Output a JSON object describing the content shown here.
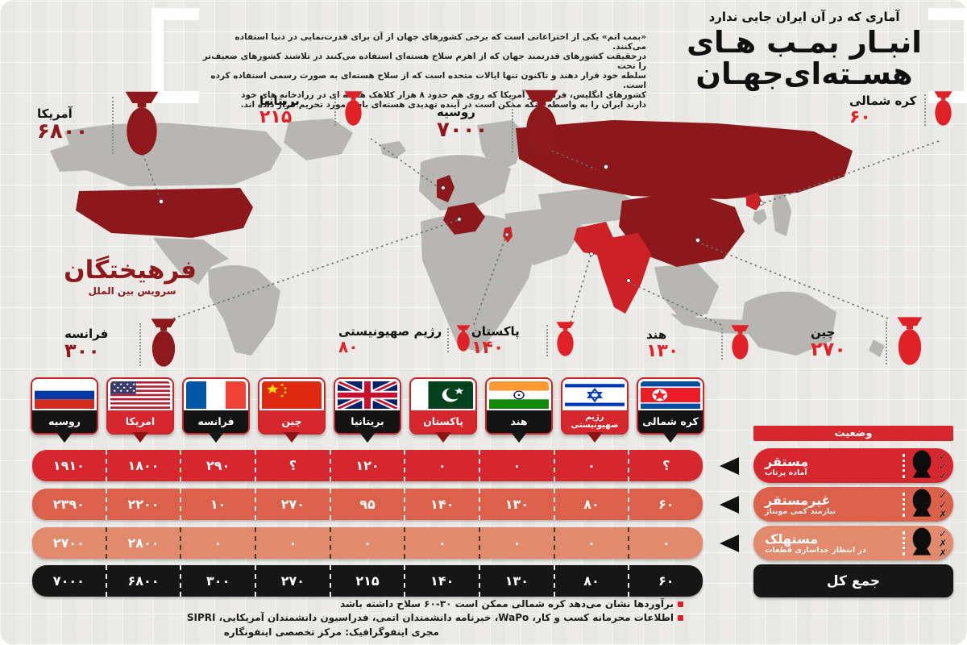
{
  "colors": {
    "bg": "#ecebe8",
    "ink": "#141414",
    "dark_red": "#8e181b",
    "bright_red": "#e02127",
    "map_gray": "#b8b6b3",
    "map_dark_red": "#8c181b",
    "map_bright_red": "#cc2127",
    "row_deployed": "#d7272e",
    "row_nondeployed": "#db614b",
    "row_retired": "#e28a6d",
    "row_total": "#161616",
    "status_header": "#d7272e",
    "flag_label_black": "#141414",
    "flag_label_red": "#d7272e"
  },
  "header": {
    "kicker": "آماری که در آن ایران جایی ندارد",
    "title_line1": "انبـار بمـب هـای",
    "title_line2": "هسـته‌ای‌جهـان",
    "intro_lines": [
      "«بمب اتم» یکی از اختراعاتی است که برخی کشورهای جهان از آن برای قدرت‌نمایی در دنیا استفاده می‌کنند.",
      "درحقیقت کشورهای قدرتمند جهان که از اهرم سلاح هسته‌ای استفاده می‌کنند در تلاشند کشورهای ضعیف‌تر را تحت",
      "سلطه خود قرار دهند و تاکنون تنها ایالات متحده است که از سلاح هسته‌ای به صورت رسمی استفاده کرده است.",
      "کشورهای انگلیس، فرانسه و آمریکا که روی هم حدود ۸ هزار کلاهک هسته ای در زرادخانه های خود",
      "دارند ایران را به واسطه اینکه ممکن است در آینده تهدیدی هسته‌ای باشد مورد تحریم قرار داده اند."
    ]
  },
  "logo": {
    "brand": "فرهیختگان",
    "unit": "سرویس بین الملل"
  },
  "callouts": [
    {
      "country": "آمریکا",
      "display": "۶۸۰۰",
      "value": 6800,
      "tone": "dark",
      "size": "xl"
    },
    {
      "country": "بریتانیا",
      "display": "۲۱۵",
      "value": 215,
      "tone": "bright",
      "size": "s"
    },
    {
      "country": "روسیه",
      "display": "۷۰۰۰",
      "value": 7000,
      "tone": "dark",
      "size": "xl"
    },
    {
      "country": "کره شمالی",
      "display": "۶۰",
      "value": 60,
      "tone": "bright",
      "size": "s"
    },
    {
      "country": "فرانسه",
      "display": "۳۰۰",
      "value": 300,
      "tone": "dark",
      "size": "m"
    },
    {
      "country": "رژیم صهیونیستی",
      "display": "۸۰",
      "value": 80,
      "tone": "bright",
      "size": "xs"
    },
    {
      "country": "پاکستان",
      "display": "۱۴۰",
      "value": 140,
      "tone": "bright",
      "size": "s"
    },
    {
      "country": "هند",
      "display": "۱۳۰",
      "value": 130,
      "tone": "bright",
      "size": "s"
    },
    {
      "country": "چین",
      "display": "۲۷۰",
      "value": 270,
      "tone": "bright",
      "size": "m"
    }
  ],
  "flags_row": [
    {
      "label": "روسیه",
      "flag": "russia",
      "label_bg": "black"
    },
    {
      "label": "امریکا",
      "flag": "usa",
      "label_bg": "red"
    },
    {
      "label": "فرانسه",
      "flag": "france",
      "label_bg": "black"
    },
    {
      "label": "چین",
      "flag": "china",
      "label_bg": "red"
    },
    {
      "label": "بریتانیا",
      "flag": "uk",
      "label_bg": "black"
    },
    {
      "label": "پاکستان",
      "flag": "pakistan",
      "label_bg": "red"
    },
    {
      "label": "هند",
      "flag": "india",
      "label_bg": "black"
    },
    {
      "label": "رژیم صهیونیستی",
      "flag": "israel",
      "label_bg": "red"
    },
    {
      "label": "کره شمالی",
      "flag": "northkorea",
      "label_bg": "black"
    }
  ],
  "chart_data": {
    "type": "table",
    "title": "انبار بمب های هسته‌ای جهان",
    "subtitle": "آماری که در آن ایران جایی ندارد",
    "columns": [
      "روسیه",
      "امریکا",
      "فرانسه",
      "چین",
      "بریتانیا",
      "پاکستان",
      "هند",
      "رژیم صهیونیستی",
      "کره شمالی"
    ],
    "rows": [
      {
        "label": "مستقر",
        "description": "آماده پرتاب",
        "display": [
          "۱۹۱۰",
          "۱۸۰۰",
          "۲۹۰",
          "؟",
          "۱۲۰",
          "۰",
          "۰",
          "۰",
          "؟"
        ],
        "values": [
          1910,
          1800,
          290,
          null,
          120,
          0,
          0,
          0,
          null
        ]
      },
      {
        "label": "غیرمستقر",
        "description": "نیازمند کمی مونتاژ",
        "display": [
          "۲۳۹۰",
          "۲۲۰۰",
          "۱۰",
          "۲۷۰",
          "۹۵",
          "۱۴۰",
          "۱۳۰",
          "۸۰",
          "۶۰"
        ],
        "values": [
          2390,
          2200,
          10,
          270,
          95,
          140,
          130,
          80,
          60
        ]
      },
      {
        "label": "مستهلک",
        "description": "در انتظار جداسازی قطعات",
        "display": [
          "۲۷۰۰",
          "۲۸۰۰",
          "۰",
          "۰",
          "۰",
          "۰",
          "۰",
          "۰",
          "۰"
        ],
        "values": [
          2700,
          2800,
          0,
          0,
          0,
          0,
          0,
          0,
          0
        ]
      },
      {
        "label": "جمع کل",
        "description": "",
        "display": [
          "۷۰۰۰",
          "۶۸۰۰",
          "۳۰۰",
          "۲۷۰",
          "۲۱۵",
          "۱۴۰",
          "۱۳۰",
          "۸۰",
          "۶۰"
        ],
        "values": [
          7000,
          6800,
          300,
          270,
          215,
          140,
          130,
          80,
          60
        ]
      }
    ]
  },
  "status_panel": {
    "header": "وضعیت",
    "legend": [
      {
        "label": "مستقر",
        "sublabel": "آماده پرتاب",
        "marks": [
          "check",
          "check",
          "check"
        ],
        "color_key": "row_deployed"
      },
      {
        "label": "غیرمستقر",
        "sublabel": "نیازمند کمی مونتاژ",
        "marks": [
          "check",
          "check",
          "cross"
        ],
        "color_key": "row_nondeployed"
      },
      {
        "label": "مستهلک",
        "sublabel": "در انتظار جداسازی قطعات",
        "marks": [
          "check",
          "cross",
          "cross"
        ],
        "color_key": "row_retired"
      }
    ],
    "total_label": "جمع کل"
  },
  "footer": {
    "note1": "برآوردها نشان می‌دهد کره شمالی ممکن است ۳۰-۶۰ سلاح داشته باشد",
    "note2": "اطلاعات محرمانه کسب و کار، WaPo، خبرنامه دانشمندان اتمی، فدراسیون دانشمندان آمریکایی، SIPRI",
    "credit": "مجری اینفوگرافیک: مرکز تخصصی اینفونگاره"
  }
}
